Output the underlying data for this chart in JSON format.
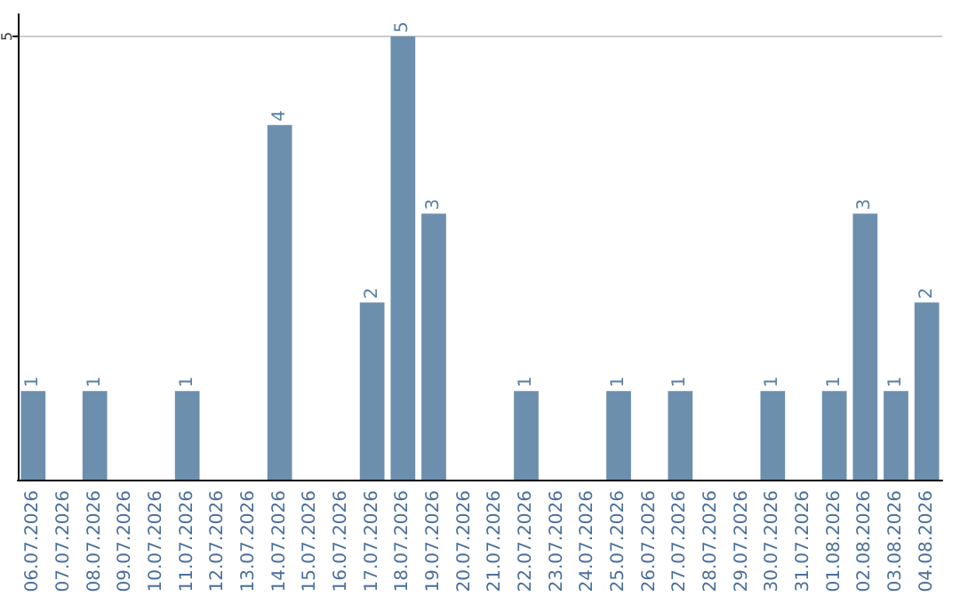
{
  "chart_data": {
    "type": "bar",
    "categories": [
      "06.07.2026",
      "07.07.2026",
      "08.07.2026",
      "09.07.2026",
      "10.07.2026",
      "11.07.2026",
      "12.07.2026",
      "13.07.2026",
      "14.07.2026",
      "15.07.2026",
      "16.07.2026",
      "17.07.2026",
      "18.07.2026",
      "19.07.2026",
      "20.07.2026",
      "21.07.2026",
      "22.07.2026",
      "23.07.2026",
      "24.07.2026",
      "25.07.2026",
      "26.07.2026",
      "27.07.2026",
      "28.07.2026",
      "29.07.2026",
      "30.07.2026",
      "31.07.2026",
      "01.08.2026",
      "02.08.2026",
      "03.08.2026",
      "04.08.2026"
    ],
    "values": [
      1,
      null,
      1,
      null,
      null,
      1,
      null,
      null,
      4,
      null,
      null,
      2,
      5,
      3,
      null,
      null,
      1,
      null,
      null,
      1,
      null,
      1,
      null,
      null,
      1,
      null,
      1,
      3,
      1,
      2
    ],
    "color": "#6d8fae",
    "ylim": [
      0,
      5.25
    ],
    "yticks": [
      5
    ],
    "grid": "y",
    "data_labels": true
  }
}
